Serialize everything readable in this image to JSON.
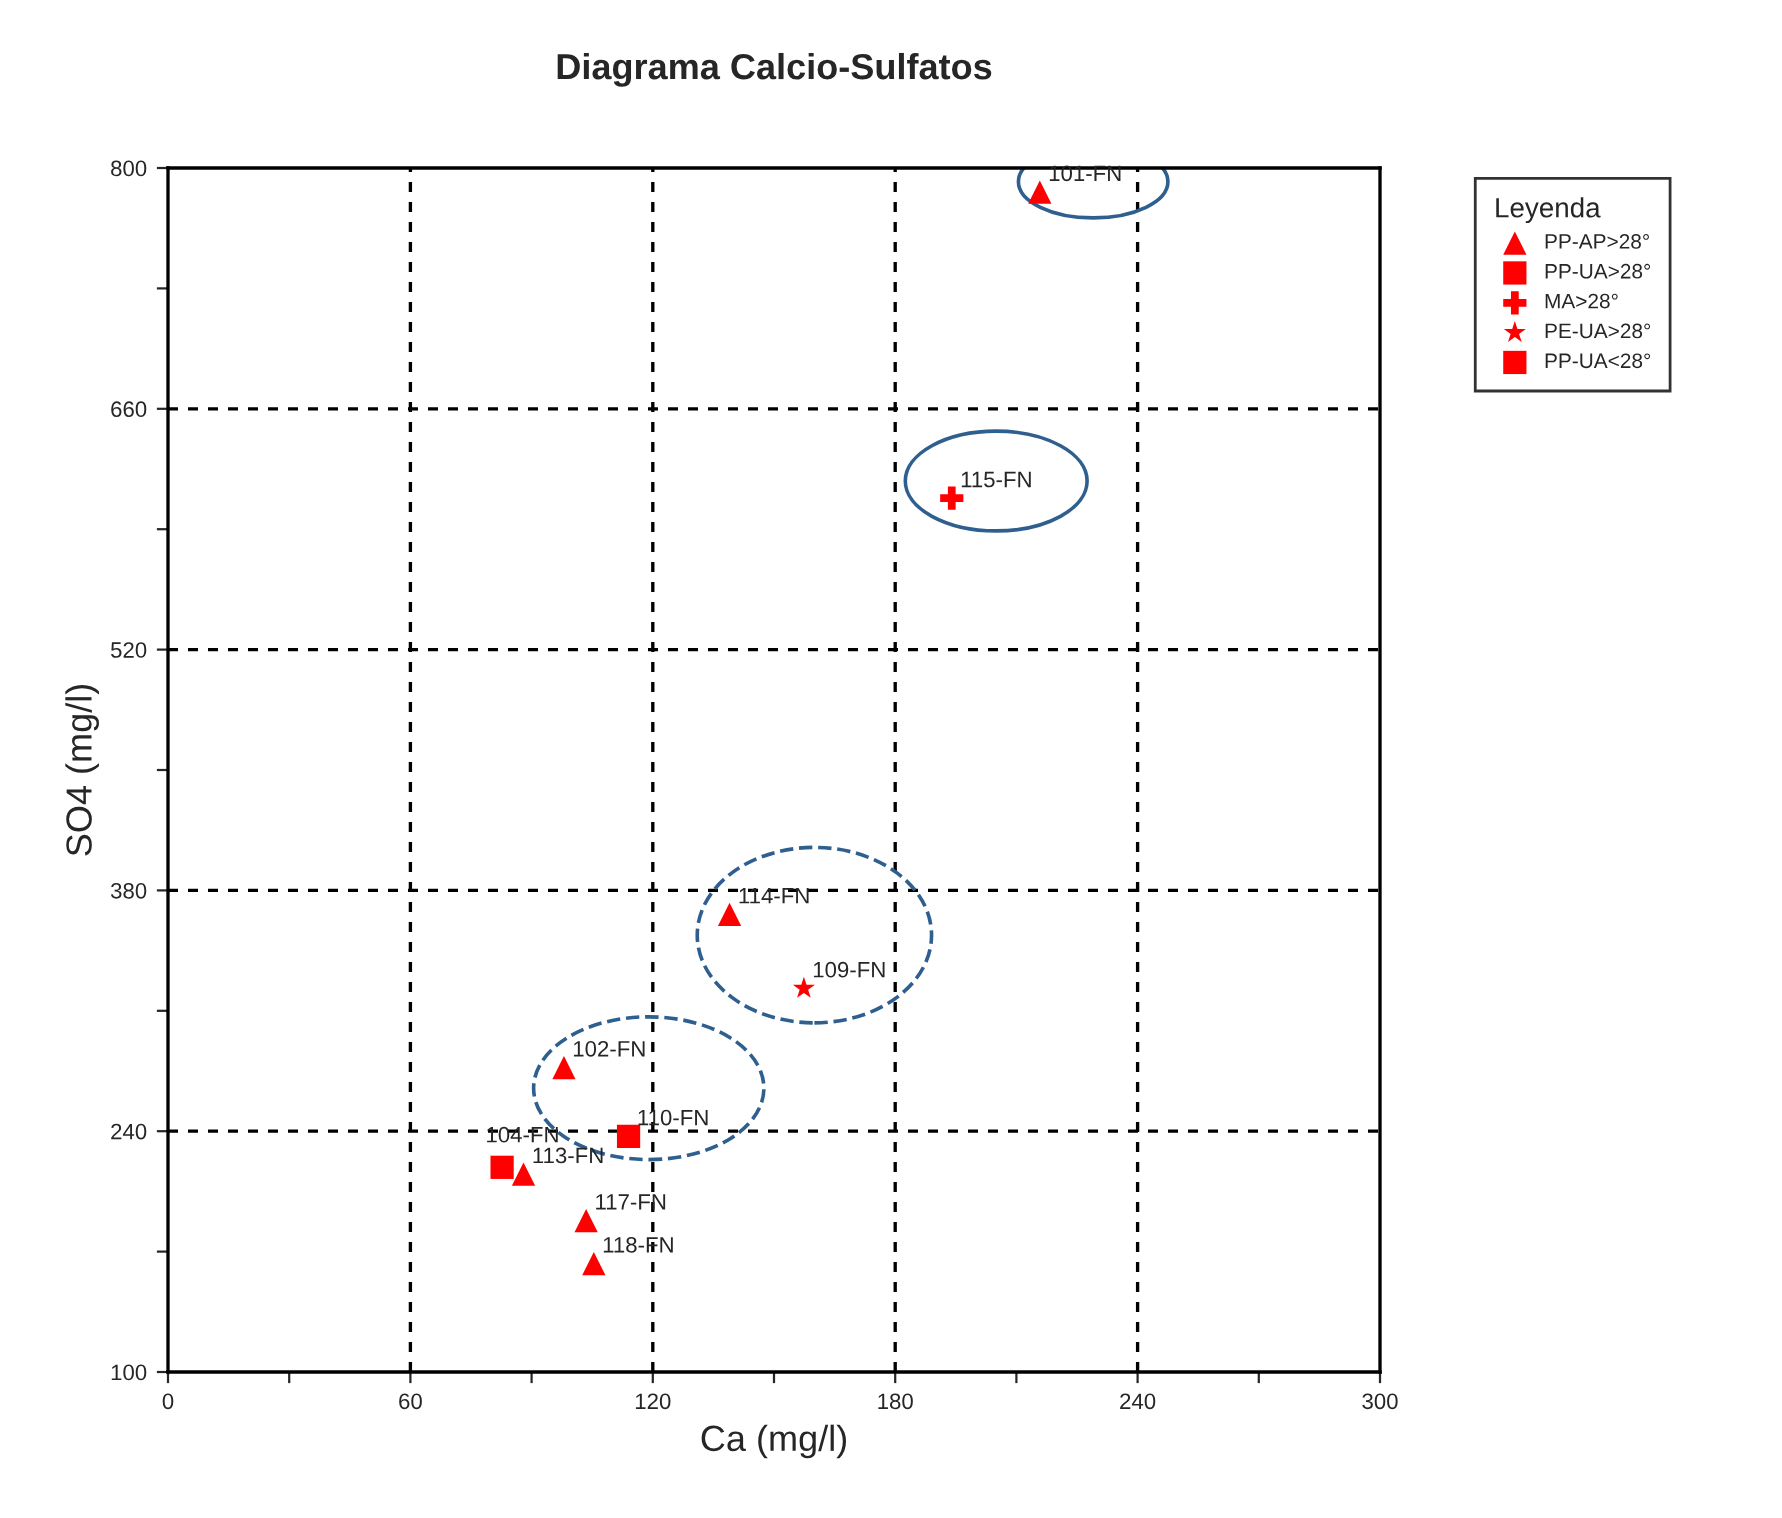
{
  "chart_data": {
    "type": "scatter",
    "title": "Diagrama Calcio-Sulfatos",
    "xlabel": "Ca (mg/l)",
    "ylabel": "SO4 (mg/l)",
    "legend_title": "Leyenda",
    "legend": "top right",
    "grid": true,
    "xlim": [
      0,
      300
    ],
    "ylim": [
      100,
      800
    ],
    "xticks": [
      0,
      {
        "value": 30,
        "label": null
      },
      60,
      {
        "value": 90,
        "label": null
      },
      120,
      {
        "value": 150,
        "label": null
      },
      180,
      {
        "value": 210,
        "label": null
      },
      240,
      {
        "value": 270,
        "label": null
      },
      300
    ],
    "yticks": [
      100,
      {
        "value": 170,
        "label": null
      },
      240,
      {
        "value": 310,
        "label": null
      },
      380,
      {
        "value": 450,
        "label": null
      },
      520,
      {
        "value": 590,
        "label": null
      },
      660,
      {
        "value": 730,
        "label": null
      },
      800
    ],
    "series": [
      {
        "name": "PP-AP>28°",
        "color": "#ff0000",
        "marker": "triangle",
        "x": [
          215.8,
          139,
          98,
          88,
          103.5,
          105.4
        ],
        "values": [
          786,
          366,
          277,
          215,
          188,
          163
        ]
      },
      {
        "name": "PP-UA>28°",
        "color": "#ff0000",
        "marker": "square",
        "x": [
          114
        ],
        "values": [
          237
        ]
      },
      {
        "name": "MA>28°",
        "color": "#ff0000",
        "marker": "cross",
        "x": [
          194
        ],
        "values": [
          608
        ]
      },
      {
        "name": "PE-UA>28°",
        "color": "#ff0000",
        "marker": "star",
        "x": [
          157.4
        ],
        "values": [
          323
        ]
      },
      {
        "name": "PP-UA<28°",
        "color": "#ff0000",
        "marker": "square",
        "x": [
          82.7
        ],
        "values": [
          219
        ]
      }
    ],
    "annotations": [
      {
        "text": "101-FN",
        "x": 215.8,
        "y": 786
      },
      {
        "text": "114-FN",
        "x": 139,
        "y": 366
      },
      {
        "text": "102-FN",
        "x": 98,
        "y": 277
      },
      {
        "text": "113-FN",
        "x": 88,
        "y": 215
      },
      {
        "text": "117-FN",
        "x": 103.5,
        "y": 188
      },
      {
        "text": "118-FN",
        "x": 105.4,
        "y": 163
      },
      {
        "text": "110-FN",
        "x": 114,
        "y": 237
      },
      {
        "text": "115-FN",
        "x": 194,
        "y": 608
      },
      {
        "text": "109-FN",
        "x": 157.4,
        "y": 323
      },
      {
        "text": "104-FN",
        "x": 82.7,
        "y": 219
      }
    ]
  }
}
